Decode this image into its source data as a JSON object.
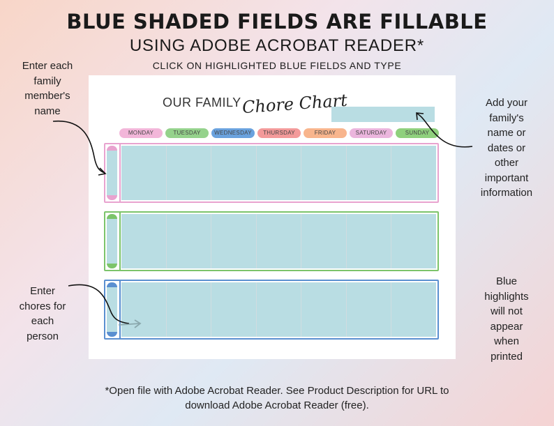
{
  "header": {
    "title": "BLUE SHADED FIELDS ARE FILLABLE",
    "subtitle": "USING ADOBE ACROBAT READER*",
    "instruction": "CLICK ON HIGHLIGHTED BLUE FIELDS AND TYPE"
  },
  "notes": {
    "left_top": [
      "Enter each",
      "family",
      "member's",
      "name"
    ],
    "left_bottom": [
      "Enter",
      "chores for",
      "each",
      "person"
    ],
    "right_top": [
      "Add your",
      "family's",
      "name or",
      "dates or",
      "other",
      "important",
      "information"
    ],
    "right_bottom": [
      "Blue",
      "highlights",
      "will not",
      "appear",
      "when",
      "printed"
    ]
  },
  "footer": {
    "line1": "*Open file with Adobe Acrobat Reader. See Product Description for URL to",
    "line2": "download Adobe Acrobat Reader (free)."
  },
  "chart": {
    "title_plain": "OUR FAMILY",
    "title_script": "Chore Chart",
    "days": [
      {
        "label": "MONDAY",
        "color": "#f2b6d9"
      },
      {
        "label": "TUESDAY",
        "color": "#95d28c"
      },
      {
        "label": "WEDNESDAY",
        "color": "#6aa2de"
      },
      {
        "label": "THURSDAY",
        "color": "#f39a9a"
      },
      {
        "label": "FRIDAY",
        "color": "#f8b58d"
      },
      {
        "label": "SATURDAY",
        "color": "#ebb5dd"
      },
      {
        "label": "SUNDAY",
        "color": "#8fd07d"
      }
    ],
    "rows": [
      {
        "color": "#e8a3cf"
      },
      {
        "color": "#7cc46a"
      },
      {
        "color": "#5a8fd0"
      }
    ],
    "field_color": "#b9dde3"
  }
}
